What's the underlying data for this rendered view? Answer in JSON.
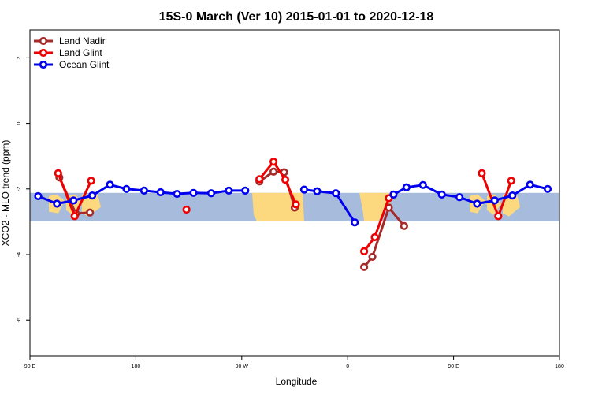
{
  "chart_data": {
    "type": "line",
    "title": "15S-0 March (Ver 10)   2015-01-01 to 2020-12-18",
    "xlabel": "Longitude",
    "ylabel": "XCO2 - MLO trend (ppm)",
    "x_ticks": [
      {
        "value": 90,
        "label": "90 E"
      },
      {
        "value": 180,
        "label": "180"
      },
      {
        "value": 270,
        "label": "90 W"
      },
      {
        "value": 360,
        "label": "0"
      },
      {
        "value": 450,
        "label": "90 E"
      },
      {
        "value": 540,
        "label": "180"
      }
    ],
    "y_ticks": [
      {
        "value": 2,
        "label": "2"
      },
      {
        "value": 0,
        "label": "0"
      },
      {
        "value": -2,
        "label": "-2"
      },
      {
        "value": -4,
        "label": "-4"
      },
      {
        "value": -6,
        "label": "-6"
      }
    ],
    "xlim": [
      90,
      540
    ],
    "ylim": [
      -7.1,
      2.85
    ],
    "map_band": {
      "lat_range_label": "15S-0",
      "y_top": -2.12,
      "y_bottom": -2.98,
      "ocean_color": "#a7bcdc",
      "land_color": "#fcd97e"
    },
    "legend_position": "top-left",
    "series": [
      {
        "name": "Land Nadir",
        "color": "#a52a2a",
        "x": [
          115,
          129,
          141,
          223,
          285,
          297,
          306,
          315,
          374,
          381,
          395,
          408
        ],
        "y": [
          -1.65,
          -2.75,
          -2.72,
          null,
          -1.77,
          -1.47,
          -1.49,
          -2.57,
          -4.38,
          -4.07,
          -2.57,
          -3.13
        ]
      },
      {
        "name": "Land Glint",
        "color": "#ee0000",
        "x": [
          114,
          128,
          142,
          223,
          285,
          297,
          307,
          316,
          374,
          383,
          395,
          474,
          488,
          499
        ],
        "y": [
          -1.52,
          -2.83,
          -1.75,
          -2.63,
          -1.7,
          -1.17,
          -1.72,
          -2.47,
          -3.9,
          -3.47,
          -2.28,
          -1.52,
          -2.83,
          -1.75
        ],
        "points_only_index": [
          3
        ]
      },
      {
        "name": "Ocean Glint",
        "color": "#0000ee",
        "x": [
          97,
          113,
          127,
          143,
          158,
          172,
          187,
          201,
          215,
          229,
          244,
          259,
          273,
          323,
          334,
          350,
          366,
          399,
          410,
          424,
          440,
          455,
          470,
          485,
          500,
          515,
          530
        ],
        "y": [
          -2.22,
          -2.45,
          -2.35,
          -2.2,
          -1.87,
          -2.0,
          -2.05,
          -2.1,
          -2.15,
          -2.12,
          -2.13,
          -2.05,
          -2.05,
          -2.02,
          -2.07,
          -2.13,
          -3.02,
          -2.17,
          -1.95,
          -1.88,
          -2.17,
          -2.25,
          -2.45,
          -2.35,
          -2.2,
          -1.87,
          -2.0
        ],
        "segments": [
          [
            0,
            12
          ],
          [
            13,
            16
          ],
          [
            17,
            26
          ]
        ]
      }
    ]
  }
}
